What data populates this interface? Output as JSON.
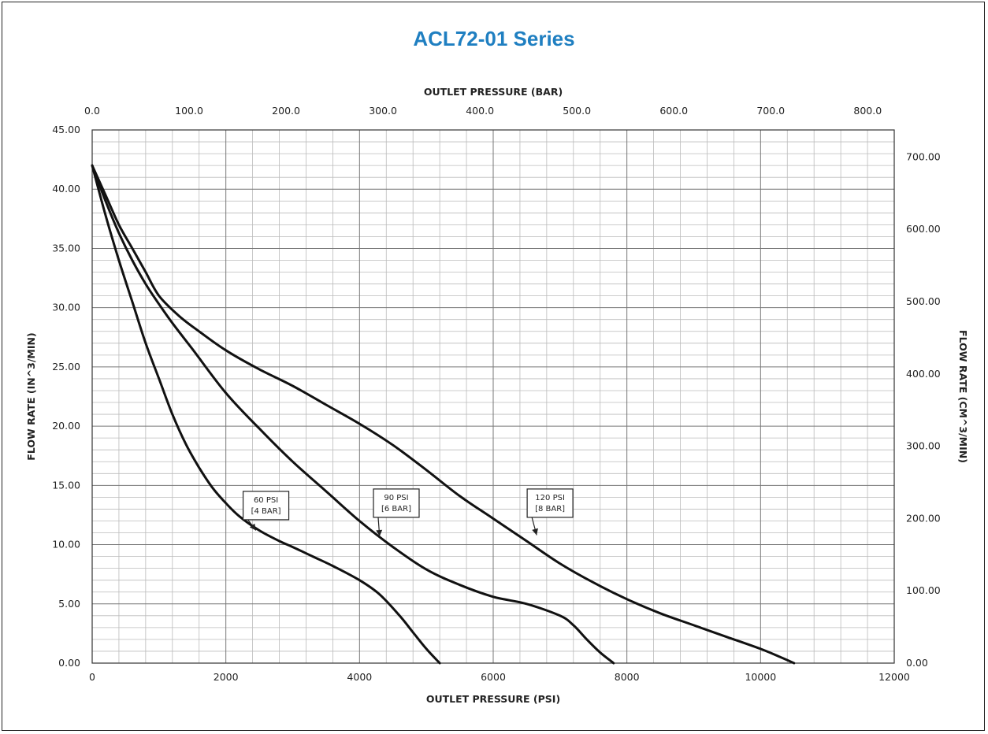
{
  "title": "ACL72-01 Series",
  "chart_data": {
    "type": "line",
    "title": "ACL72-01 Series",
    "xlabel": "OUTLET PRESSURE (PSI)",
    "x2label": "OUTLET PRESSURE (BAR)",
    "ylabel": "FLOW RATE (IN^3/MIN)",
    "y2label": "FLOW RATE (CM^3/MIN)",
    "xlim": [
      0,
      12000
    ],
    "ylim": [
      0,
      45
    ],
    "x2lim": [
      0,
      827.4
    ],
    "y2lim": [
      0,
      737.4
    ],
    "grid": true,
    "x_ticks": [
      "0",
      "2000",
      "4000",
      "6000",
      "8000",
      "10000",
      "12000"
    ],
    "x_tick_values": [
      0,
      2000,
      4000,
      6000,
      8000,
      10000,
      12000
    ],
    "x2_ticks": [
      "0.0",
      "100.0",
      "200.0",
      "300.0",
      "400.0",
      "500.0",
      "600.0",
      "700.0",
      "800.0"
    ],
    "x2_tick_values": [
      0,
      100,
      200,
      300,
      400,
      500,
      600,
      700,
      800
    ],
    "y_ticks": [
      "0.00",
      "5.00",
      "10.00",
      "15.00",
      "20.00",
      "25.00",
      "30.00",
      "35.00",
      "40.00",
      "45.00"
    ],
    "y_tick_values": [
      0,
      5,
      10,
      15,
      20,
      25,
      30,
      35,
      40,
      45
    ],
    "y2_ticks": [
      "0.00",
      "100.00",
      "200.00",
      "300.00",
      "400.00",
      "500.00",
      "600.00",
      "700.00"
    ],
    "y2_tick_values": [
      0,
      100,
      200,
      300,
      400,
      500,
      600,
      700
    ],
    "series": [
      {
        "name": "60 PSI [4 BAR]",
        "label_lines": [
          "60 PSI",
          "[4 BAR]"
        ],
        "label_at": [
          2600,
          13.3
        ],
        "arrow_to": [
          2450,
          11.2
        ],
        "x": [
          0,
          200,
          400,
          600,
          800,
          1000,
          1200,
          1400,
          1600,
          1800,
          2000,
          2200,
          2500,
          2800,
          3000,
          3300,
          3600,
          4000,
          4300,
          4600,
          4800,
          5000,
          5200
        ],
        "y": [
          42.0,
          37.8,
          34.0,
          30.5,
          27.0,
          24.0,
          21.0,
          18.5,
          16.5,
          14.8,
          13.5,
          12.4,
          11.2,
          10.3,
          9.8,
          9.0,
          8.2,
          7.0,
          5.8,
          4.0,
          2.6,
          1.2,
          0.0
        ]
      },
      {
        "name": "90 PSI [6 BAR]",
        "label_lines": [
          "90 PSI",
          "[6 BAR]"
        ],
        "label_at": [
          4550,
          13.5
        ],
        "arrow_to": [
          4300,
          10.7
        ],
        "x": [
          0,
          200,
          400,
          600,
          800,
          1000,
          1200,
          1500,
          2000,
          2500,
          3000,
          3500,
          4000,
          4500,
          5000,
          5500,
          6000,
          6500,
          7000,
          7200,
          7400,
          7600,
          7800
        ],
        "y": [
          42.0,
          39.0,
          36.3,
          34.0,
          32.0,
          30.3,
          28.7,
          26.5,
          22.8,
          19.8,
          17.0,
          14.5,
          12.0,
          9.8,
          7.9,
          6.6,
          5.6,
          5.0,
          4.0,
          3.2,
          2.0,
          0.9,
          0.0
        ]
      },
      {
        "name": "120 PSI [8 BAR]",
        "label_lines": [
          "120 PSI",
          "[8 BAR]"
        ],
        "label_at": [
          6850,
          13.5
        ],
        "arrow_to": [
          6650,
          10.8
        ],
        "x": [
          0,
          200,
          400,
          600,
          800,
          1000,
          1300,
          1600,
          2000,
          2500,
          3000,
          3500,
          4000,
          4500,
          5000,
          5500,
          6000,
          6500,
          7000,
          7500,
          8000,
          8500,
          9000,
          9500,
          10000,
          10300,
          10500
        ],
        "y": [
          42.0,
          39.5,
          37.0,
          35.0,
          33.0,
          31.0,
          29.3,
          28.0,
          26.4,
          24.8,
          23.4,
          21.8,
          20.2,
          18.4,
          16.3,
          14.1,
          12.2,
          10.3,
          8.4,
          6.8,
          5.4,
          4.2,
          3.2,
          2.2,
          1.2,
          0.5,
          0.0
        ]
      }
    ]
  }
}
